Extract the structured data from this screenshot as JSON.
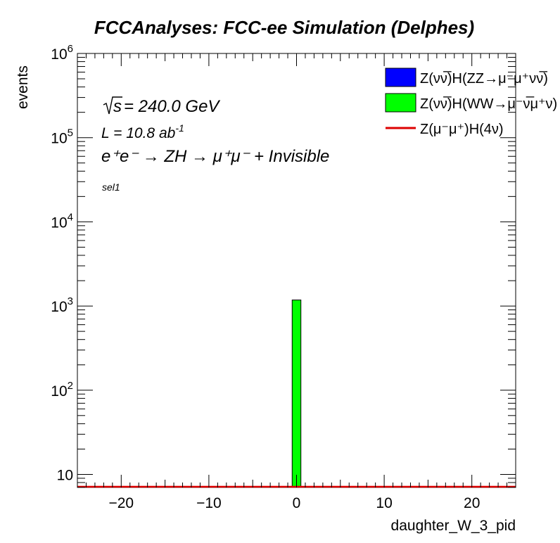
{
  "chart_data": {
    "type": "bar",
    "title": "FCCAnalyses: FCC-ee Simulation (Delphes)",
    "xlabel": "daughter_W_3_pid",
    "ylabel": "events",
    "xlim": [
      -25,
      25
    ],
    "ylim": [
      7,
      1000000
    ],
    "yscale": "log",
    "x_ticks": [
      -20,
      -10,
      0,
      10,
      20
    ],
    "x_tick_labels": [
      "−20",
      "−10",
      "0",
      "10",
      "20"
    ],
    "y_ticks": [
      10,
      100,
      1000,
      10000,
      100000,
      1000000
    ],
    "y_tick_labels": [
      {
        "base": "10",
        "exp": ""
      },
      {
        "base": "10",
        "exp": "2"
      },
      {
        "base": "10",
        "exp": "3"
      },
      {
        "base": "10",
        "exp": "4"
      },
      {
        "base": "10",
        "exp": "5"
      },
      {
        "base": "10",
        "exp": "6"
      }
    ],
    "grid": false,
    "legend_position": "top-right",
    "series": [
      {
        "name": "Z(νν̅)H(ZZ→μ⁻μ⁺νν̅)",
        "color": "#0000ff",
        "kind": "filled",
        "bins": []
      },
      {
        "name": "Z(νν̅)H(WW→μ⁻ν̅μ⁺ν)",
        "color": "#00ff00",
        "kind": "filled",
        "bins": [
          {
            "x0": -0.5,
            "x1": 0.5,
            "value": 1180
          }
        ]
      },
      {
        "name": "Z(μ⁻μ⁺)H(4ν)",
        "color": "#dd0000",
        "kind": "line",
        "bins": []
      }
    ],
    "annotations": {
      "sqrt_s": "= 240.0 GeV",
      "lumi_text": "L = 10.8 ab",
      "lumi_exp": "-1",
      "process": "e⁺e⁻ → ZH → μ⁺μ⁻ + Invisible",
      "selection": "sel1"
    }
  }
}
